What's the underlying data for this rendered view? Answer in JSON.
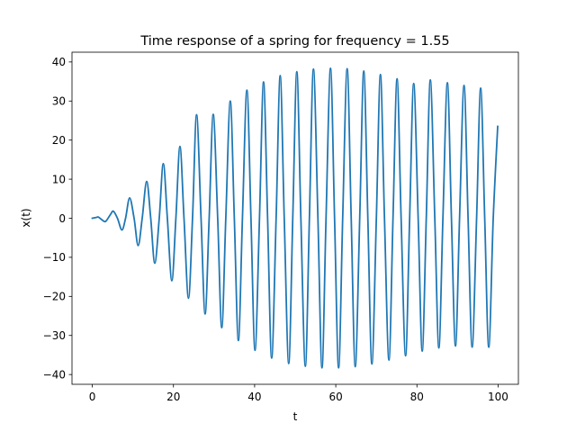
{
  "chart_data": {
    "type": "line",
    "title": "Time response of a spring for frequency = 1.55",
    "xlabel": "t",
    "ylabel": "x(t)",
    "xlim": [
      -5,
      105
    ],
    "ylim": [
      -42.5,
      42.5
    ],
    "xticks": [
      0,
      20,
      40,
      60,
      80,
      100
    ],
    "yticks": [
      -40,
      -30,
      -20,
      -10,
      0,
      10,
      20,
      30,
      40
    ],
    "grid": false,
    "legend": "none",
    "series": [
      {
        "color": "#1f77b4",
        "x": [
          0,
          1,
          1.5,
          2.5,
          3.3,
          4.5,
          5.2,
          6.2,
          7.3,
          8.2,
          9.2,
          10.3,
          11.3,
          12.3,
          13.4,
          14.4,
          15.4,
          16.5,
          17.5,
          18.5,
          19.6,
          20.6,
          21.6,
          22.6,
          23.7,
          24.7,
          25.7,
          26.8,
          27.8,
          28.8,
          29.8,
          30.9,
          31.9,
          32.9,
          34.0,
          35.0,
          36.0,
          37.0,
          38.1,
          39.1,
          40.1,
          41.2,
          42.2,
          43.2,
          44.2,
          45.3,
          46.3,
          47.3,
          48.4,
          49.4,
          50.4,
          51.4,
          52.5,
          53.5,
          54.5,
          55.6,
          56.6,
          57.6,
          58.7,
          59.7,
          60.7,
          61.7,
          62.8,
          63.8,
          64.8,
          65.9,
          66.9,
          67.9,
          68.9,
          70.0,
          71.0,
          72.0,
          73.1,
          74.1,
          75.1,
          76.1,
          77.2,
          78.2,
          79.2,
          80.3,
          81.3,
          82.3,
          83.3,
          84.4,
          85.4,
          86.4,
          87.5,
          88.5,
          89.5,
          90.5,
          91.6,
          92.6,
          93.6,
          94.7,
          95.7,
          96.7,
          97.7,
          98.8,
          99.9
        ],
        "y": [
          0,
          0.2,
          0.3,
          -0.5,
          -0.8,
          1.0,
          1.8,
          0.0,
          -3.0,
          0.0,
          5.2,
          0.0,
          -7.0,
          0.0,
          9.4,
          0.0,
          -11.5,
          0.0,
          14.0,
          0.0,
          -16.0,
          0.0,
          18.4,
          0.0,
          -20.5,
          0.0,
          26.5,
          0.0,
          -24.5,
          0.0,
          26.6,
          0.0,
          -28.0,
          0.0,
          30.0,
          0.0,
          -31.3,
          0.0,
          32.8,
          0.0,
          -33.8,
          0.0,
          34.9,
          0.0,
          -35.8,
          0.0,
          36.5,
          0.0,
          -37.2,
          0.0,
          37.5,
          0.0,
          -37.9,
          0.0,
          38.2,
          0.0,
          -38.3,
          0.0,
          38.4,
          0.0,
          -38.3,
          0.0,
          38.3,
          0.0,
          -38.0,
          0.0,
          37.7,
          0.0,
          -37.3,
          0.0,
          36.8,
          0.0,
          -36.3,
          0.0,
          35.7,
          0.0,
          -35.2,
          0.0,
          34.5,
          0.0,
          -34.0,
          0.0,
          35.4,
          0.0,
          -33.2,
          0.0,
          34.7,
          0.0,
          -32.7,
          0.0,
          34.0,
          0.0,
          -33.0,
          0.0,
          33.3,
          0.0,
          -33.0,
          0.0,
          23.5
        ]
      }
    ]
  }
}
